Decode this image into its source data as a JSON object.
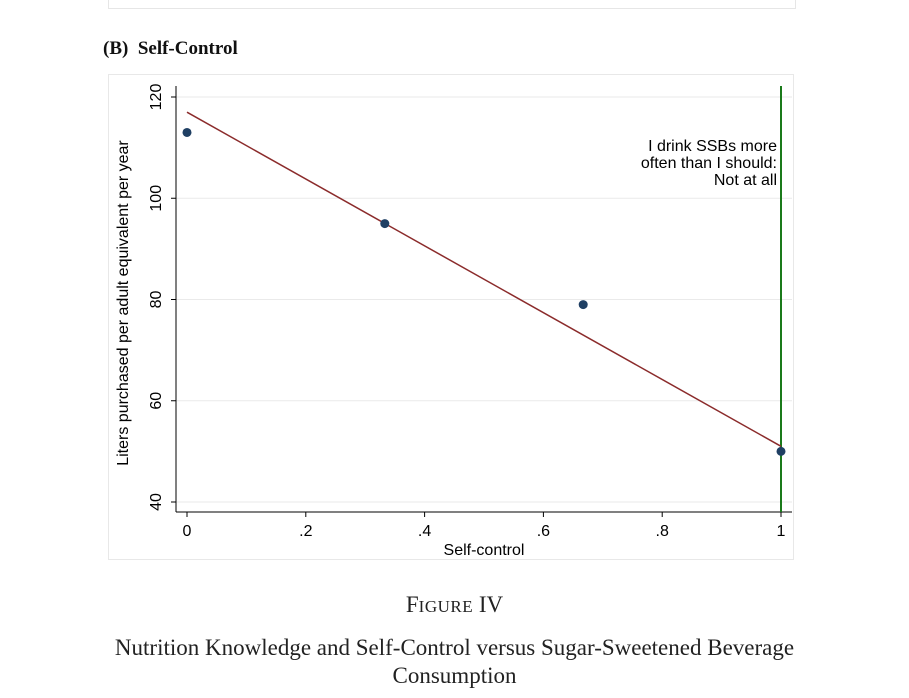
{
  "panel": {
    "title": "(B)  Self-Control"
  },
  "figure": {
    "label_first": "F",
    "label_rest": "IGURE",
    "label_num": "IV",
    "caption_line1": "Nutrition Knowledge and Self-Control versus Sugar-Sweetened Beverage",
    "caption_line2": "Consumption"
  },
  "chart_data": {
    "type": "scatter",
    "xlabel": "Self-control",
    "ylabel": "Liters purchased per adult equivalent per year",
    "xlim": [
      0,
      1
    ],
    "ylim": [
      40,
      120
    ],
    "x_ticks": [
      0,
      0.2,
      0.4,
      0.6,
      0.8,
      1
    ],
    "x_tick_labels": [
      "0",
      ".2",
      ".4",
      ".6",
      ".8",
      "1"
    ],
    "y_ticks": [
      40,
      60,
      80,
      100,
      120
    ],
    "y_tick_labels": [
      "40",
      "60",
      "80",
      "100",
      "120"
    ],
    "grid": true,
    "series": [
      {
        "kind": "points",
        "x": [
          0,
          0.333,
          0.667,
          1
        ],
        "y": [
          113,
          95,
          79,
          50
        ]
      },
      {
        "kind": "fit_line",
        "x": [
          0,
          1
        ],
        "y": [
          117,
          51
        ]
      }
    ],
    "reference_line": {
      "x": 1,
      "color": "#1a7a1a"
    },
    "annotation": [
      "I drink SSBs more",
      "often than I should:",
      "Not at all"
    ],
    "colors": {
      "points": "#1f3f63",
      "fit_line": "#8b2b2b",
      "reference": "#1a7a1a",
      "grid": "#eaeaea"
    }
  }
}
